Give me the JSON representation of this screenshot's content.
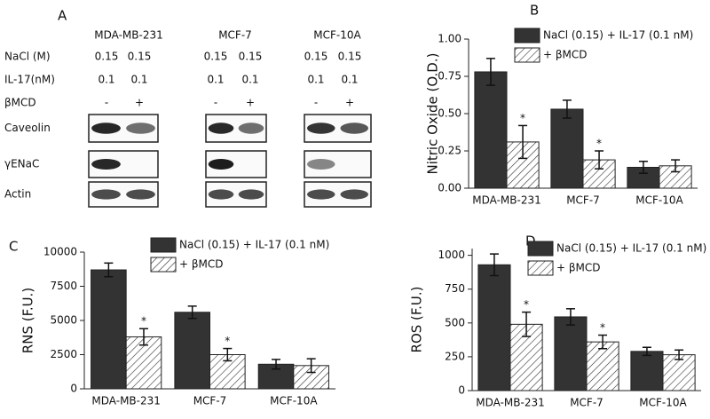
{
  "blot": {
    "panel": "A",
    "cell_lines": [
      "MDA-MB-231",
      "MCF-7",
      "MCF-10A"
    ],
    "rows": [
      {
        "label": "NaCl (M)",
        "values": [
          "0.15",
          "0.15",
          "0.15",
          "0.15",
          "0.15",
          "0.15"
        ]
      },
      {
        "label": "IL-17(nM)",
        "values": [
          "0.1",
          "0.1",
          "0.1",
          "0.1",
          "0.1",
          "0.1"
        ]
      },
      {
        "label": "βMCD",
        "values": [
          "-",
          "+",
          "-",
          "+",
          "-",
          "+"
        ]
      }
    ],
    "bands": [
      "Caveolin",
      "γENaC",
      "Actin"
    ]
  },
  "chart_data": [
    {
      "type": "bar",
      "panel": "B",
      "ylabel": "Nitric Oxide (O.D.)",
      "categories": [
        "MDA-MB-231",
        "MCF-7",
        "MCF-10A"
      ],
      "series": [
        {
          "name": "NaCl (0.15) + IL-17 (0.1 nM)",
          "color": "#333333",
          "values": [
            0.78,
            0.53,
            0.14
          ],
          "errors": [
            0.09,
            0.06,
            0.04
          ]
        },
        {
          "name": "+ βMCD",
          "color": "#ffffff",
          "hatch": true,
          "values": [
            0.31,
            0.19,
            0.15
          ],
          "errors": [
            0.11,
            0.06,
            0.04
          ],
          "significance": [
            "*",
            "*",
            null
          ]
        }
      ],
      "ylim": [
        0,
        1.0
      ],
      "yticks": [
        {
          "value": 0,
          "label": "0.00"
        },
        {
          "value": 0.25,
          "label": "0.25"
        },
        {
          "value": 0.5,
          "label": "0.50"
        },
        {
          "value": 0.75,
          "label": "0.75"
        },
        {
          "value": 1.0,
          "label": "1.00"
        }
      ]
    },
    {
      "type": "bar",
      "panel": "C",
      "ylabel": "RNS (F.U.)",
      "categories": [
        "MDA-MB-231",
        "MCF-7",
        "MCF-10A"
      ],
      "series": [
        {
          "name": "NaCl (0.15) + IL-17 (0.1 nM)",
          "color": "#333333",
          "values": [
            8700,
            5600,
            1800
          ],
          "errors": [
            500,
            450,
            350
          ]
        },
        {
          "name": "+ βMCD",
          "color": "#ffffff",
          "hatch": true,
          "values": [
            3800,
            2500,
            1700
          ],
          "errors": [
            600,
            450,
            500
          ],
          "significance": [
            "*",
            "*",
            null
          ]
        }
      ],
      "ylim": [
        0,
        10000
      ],
      "yticks": [
        0,
        2500,
        5000,
        7500,
        10000
      ]
    },
    {
      "type": "bar",
      "panel": "D",
      "ylabel": "ROS (F.U.)",
      "categories": [
        "MDA-MB-231",
        "MCF-7",
        "MCF-10A"
      ],
      "series": [
        {
          "name": "NaCl (0.15) + IL-17 (0.1 nM)",
          "color": "#333333",
          "values": [
            930,
            545,
            290
          ],
          "errors": [
            80,
            60,
            30
          ]
        },
        {
          "name": "+ βMCD",
          "color": "#ffffff",
          "hatch": true,
          "values": [
            490,
            360,
            265
          ],
          "errors": [
            90,
            50,
            35
          ],
          "significance": [
            "*",
            "*",
            null
          ]
        }
      ],
      "ylim": [
        0,
        1050
      ],
      "yticks": [
        0,
        250,
        500,
        750,
        1000
      ]
    }
  ]
}
